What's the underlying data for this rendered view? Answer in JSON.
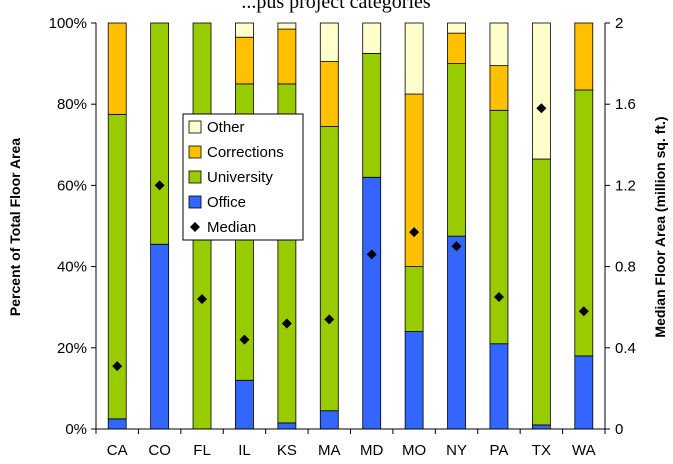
{
  "chart_data": {
    "type": "bar",
    "stacked": true,
    "title": "...pus project categories",
    "categories": [
      "CA",
      "CO",
      "FL",
      "IL",
      "KS",
      "MA",
      "MD",
      "MO",
      "NY",
      "PA",
      "TX",
      "WA"
    ],
    "series": [
      {
        "name": "Office",
        "color": "#3366ff",
        "values": [
          2.5,
          45.5,
          0,
          12,
          1.5,
          4.5,
          62,
          24,
          47.5,
          21,
          1,
          18
        ]
      },
      {
        "name": "University",
        "color": "#99cc00",
        "values": [
          75,
          54.5,
          100,
          73,
          83.5,
          70,
          30.5,
          16,
          42.5,
          57.5,
          65.5,
          65.5
        ]
      },
      {
        "name": "Corrections",
        "color": "#ffc000",
        "values": [
          22.5,
          0,
          0,
          11.5,
          13.5,
          16,
          0,
          42.5,
          7.5,
          11,
          0,
          16.5
        ]
      },
      {
        "name": "Other",
        "color": "#ffffcc",
        "values": [
          0,
          0,
          0,
          3.5,
          1.5,
          9.5,
          7.5,
          17.5,
          2.5,
          10.5,
          33.5,
          0
        ]
      }
    ],
    "median": {
      "name": "Median",
      "values": [
        0.31,
        1.2,
        0.64,
        0.44,
        0.52,
        0.54,
        0.86,
        0.97,
        0.9,
        0.65,
        1.58,
        0.58
      ]
    },
    "ylabel": "Percent of Total Floor Area",
    "y2label": "Median Floor Area (million sq. ft.)",
    "ylim": [
      0,
      100
    ],
    "y2lim": [
      0,
      2
    ],
    "yticks": [
      "0%",
      "20%",
      "40%",
      "60%",
      "80%",
      "100%"
    ],
    "y2ticks": [
      "0",
      "0.4",
      "0.8",
      "1.2",
      "1.6",
      "2"
    ],
    "legend": {
      "placement": "inside-left",
      "items": [
        {
          "label": "Other",
          "color": "#ffffcc",
          "marker": "square"
        },
        {
          "label": "Corrections",
          "color": "#ffc000",
          "marker": "square"
        },
        {
          "label": "University",
          "color": "#99cc00",
          "marker": "square"
        },
        {
          "label": "Office",
          "color": "#3366ff",
          "marker": "square"
        },
        {
          "label": "Median",
          "color": "#000000",
          "marker": "diamond"
        }
      ]
    },
    "grid": false
  }
}
